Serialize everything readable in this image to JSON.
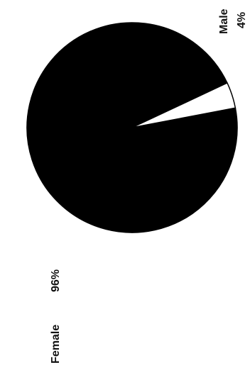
{
  "chart_data": {
    "type": "pie",
    "slices": [
      {
        "label": "Female",
        "value": 96,
        "value_label": "96%",
        "color": "#000000"
      },
      {
        "label": "Male",
        "value": 4,
        "value_label": "4%",
        "color": "#ffffff"
      }
    ],
    "title": "",
    "legend": "none"
  }
}
